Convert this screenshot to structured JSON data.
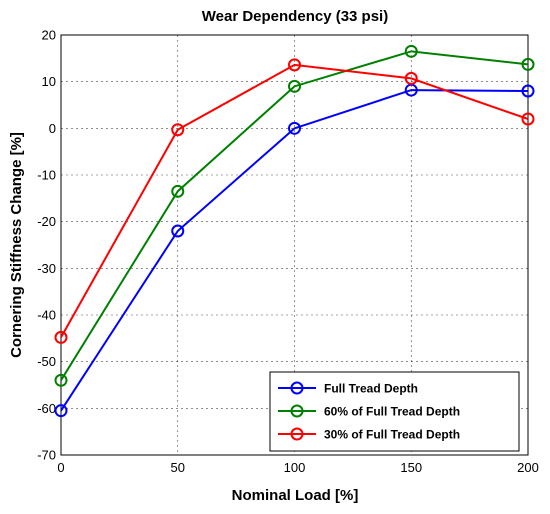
{
  "chart_data": {
    "type": "line",
    "title": "Wear Dependency  (33 psi)",
    "xlabel": "Nominal Load [%]",
    "ylabel": "Cornering Stiffness Change [%]",
    "xlim": [
      0,
      200
    ],
    "ylim": [
      -70,
      20
    ],
    "xticks": [
      0,
      50,
      100,
      150,
      200
    ],
    "yticks": [
      -70,
      -60,
      -50,
      -40,
      -30,
      -20,
      -10,
      0,
      10,
      20
    ],
    "grid": true,
    "legend_position": "lower-right",
    "x": [
      0,
      50,
      100,
      150,
      200
    ],
    "series": [
      {
        "name": "Full Tread Depth",
        "color": "#0000ff",
        "values": [
          -60.5,
          -22,
          0,
          8.2,
          8
        ]
      },
      {
        "name": "60% of Full Tread Depth",
        "color": "#008000",
        "values": [
          -54,
          -13.5,
          9,
          16.5,
          13.7
        ]
      },
      {
        "name": "30% of Full Tread Depth",
        "color": "#ff0000",
        "values": [
          -44.8,
          -0.3,
          13.6,
          10.7,
          2
        ]
      }
    ]
  }
}
